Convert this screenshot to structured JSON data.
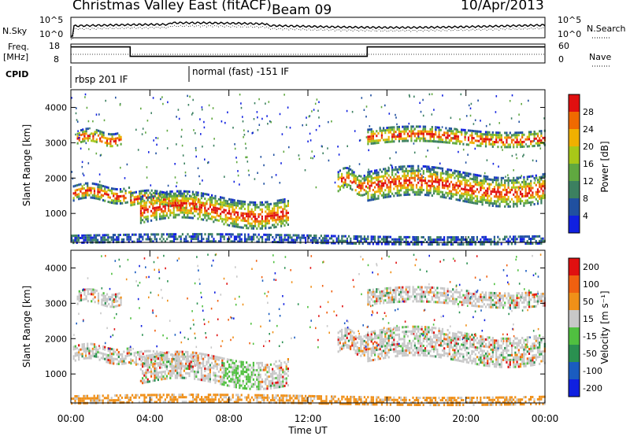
{
  "header": {
    "title": "Christmas Valley East (fitACF)",
    "beam": "Beam 09",
    "date": "10/Apr/2013"
  },
  "left_labels": {
    "nsky": "N.Sky",
    "freq_line1": "Freq.",
    "freq_line2": "[MHz]",
    "cpid": "CPID"
  },
  "right_labels": {
    "nsearch": "N.Search",
    "nave": "Nave"
  },
  "cpid_segments": [
    "rbsp 201 IF",
    "normal (fast) -151 IF"
  ],
  "chart_data": [
    {
      "type": "line",
      "panel": "noise",
      "left_axis": {
        "name": "N.Sky",
        "ticks": [
          "10^5",
          "10^0"
        ]
      },
      "right_axis": {
        "name": "N.Search",
        "ticks": [
          "10^5",
          "10^0"
        ]
      },
      "xlim": [
        0,
        24
      ]
    },
    {
      "type": "line",
      "panel": "frequency-nave",
      "left_axis": {
        "name": "Freq. [MHz]",
        "ticks": [
          18,
          8
        ]
      },
      "right_axis": {
        "name": "Nave",
        "ticks": [
          60,
          0
        ]
      },
      "series": [
        {
          "name": "Freq.",
          "x": [
            0,
            3,
            3,
            15,
            15,
            24
          ],
          "values": [
            16.5,
            16.5,
            11.5,
            11.5,
            16.5,
            16.5
          ]
        }
      ],
      "xlim": [
        0,
        24
      ]
    },
    {
      "type": "heatmap",
      "panel": "power",
      "ylabel": "Slant Range [km]",
      "yticks": [
        1000,
        2000,
        3000,
        4000
      ],
      "ylim": [
        180,
        4500
      ],
      "xlim": [
        0,
        24
      ],
      "colorbar": {
        "label": "Power [dB]",
        "ticks": [
          4,
          8,
          12,
          16,
          20,
          24,
          28
        ]
      },
      "regions": [
        {
          "t0": 0.1,
          "t1": 3,
          "r0": 1380,
          "r1": 1800
        },
        {
          "t0": 0.3,
          "t1": 2.5,
          "r0": 2950,
          "r1": 3350
        },
        {
          "t0": 3,
          "t1": 6.5,
          "r0": 1200,
          "r1": 1600
        },
        {
          "t0": 3.5,
          "t1": 11,
          "r0": 700,
          "r1": 1500
        },
        {
          "t0": 13.5,
          "t1": 15,
          "r0": 1600,
          "r1": 2200
        },
        {
          "t0": 15,
          "t1": 24,
          "r0": 1350,
          "r1": 2200
        },
        {
          "t0": 15,
          "t1": 24,
          "r0": 2950,
          "r1": 3400
        },
        {
          "t0": 0,
          "t1": 24,
          "r0": 180,
          "r1": 400
        }
      ]
    },
    {
      "type": "heatmap",
      "panel": "velocity",
      "ylabel": "Slant Range [km]",
      "yticks": [
        1000,
        2000,
        3000,
        4000
      ],
      "ylim": [
        180,
        4500
      ],
      "xlim": [
        0,
        24
      ],
      "xlabel": "Time UT",
      "xticks": [
        "00:00",
        "04:00",
        "08:00",
        "12:00",
        "16:00",
        "20:00",
        "00:00"
      ],
      "colorbar": {
        "label": "Velocity [m s⁻¹]",
        "ticks": [
          200,
          100,
          50,
          15,
          -15,
          -50,
          -100,
          -200
        ]
      }
    }
  ],
  "colors": {
    "power_scale": [
      "#1020e0",
      "#2050a0",
      "#3c8060",
      "#60a840",
      "#a8c818",
      "#f0b000",
      "#f06a00",
      "#e01010"
    ],
    "velocity_scale": [
      "#1020e0",
      "#1a5cc0",
      "#2a9050",
      "#50c040",
      "#c8c8c8",
      "#f09018",
      "#f06010",
      "#e01010"
    ]
  }
}
